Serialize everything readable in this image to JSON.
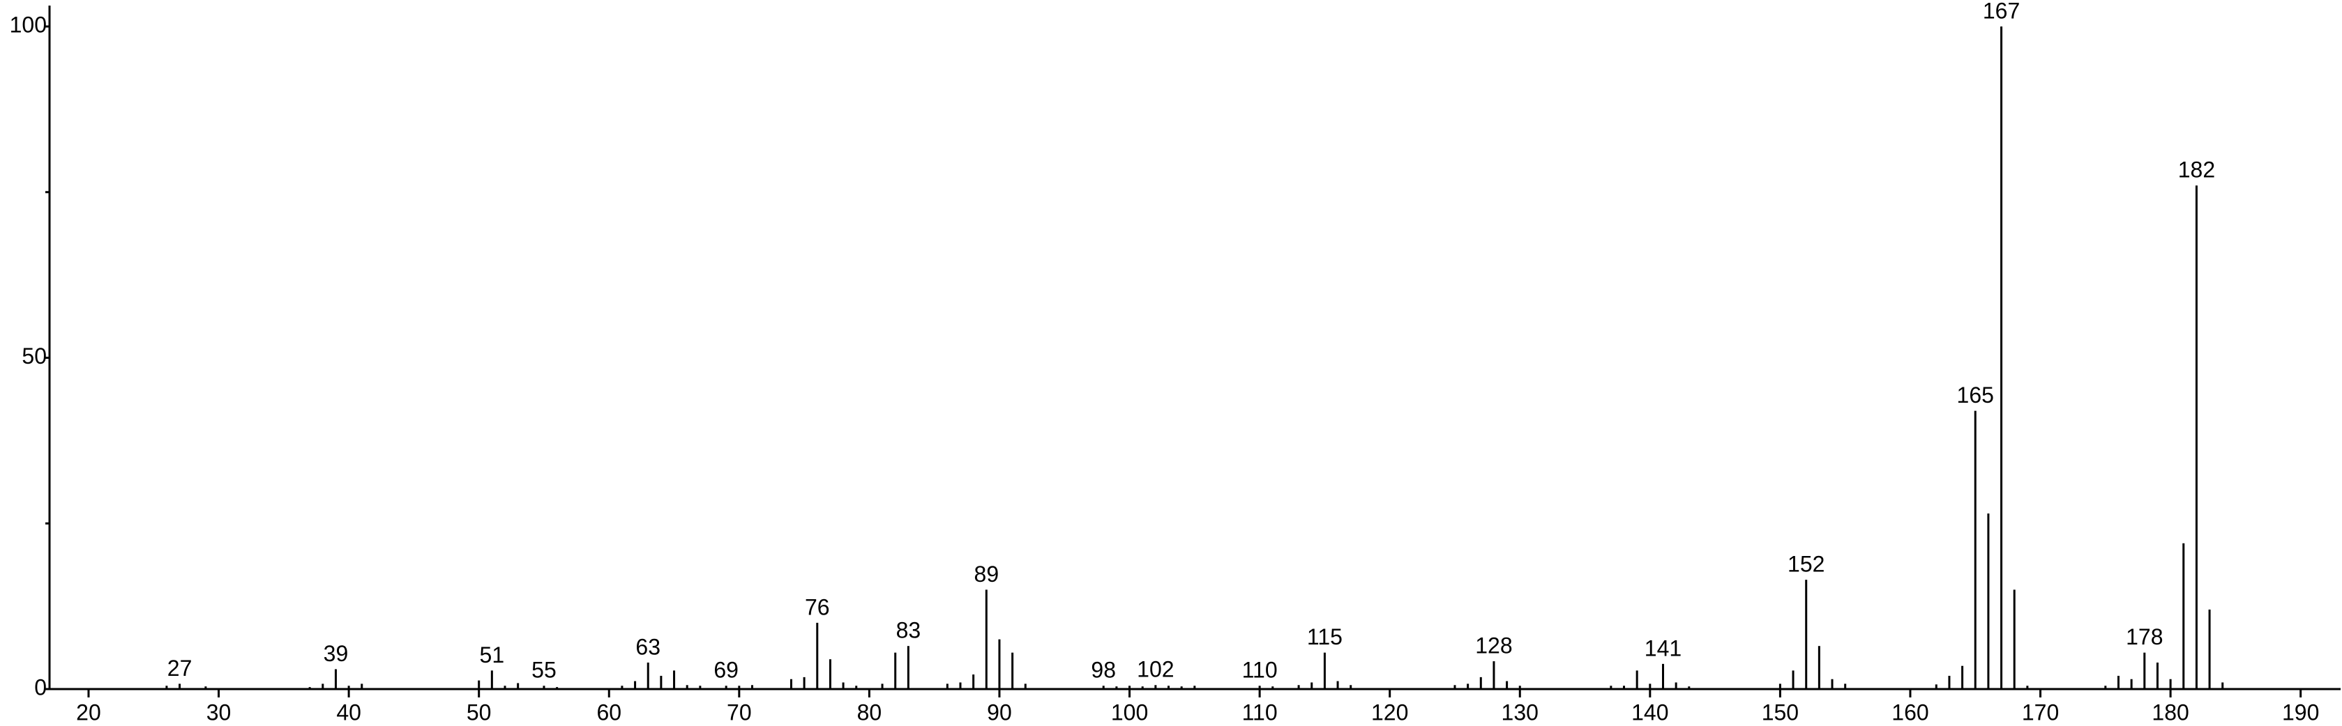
{
  "chart_data": {
    "type": "stem",
    "color": "#000000",
    "x": [
      26,
      27,
      29,
      37,
      38,
      39,
      40,
      41,
      50,
      51,
      52,
      53,
      55,
      56,
      61,
      62,
      63,
      64,
      65,
      66,
      67,
      69,
      70,
      71,
      74,
      75,
      76,
      77,
      78,
      79,
      81,
      82,
      83,
      86,
      87,
      88,
      89,
      90,
      91,
      92,
      98,
      99,
      100,
      101,
      102,
      103,
      104,
      105,
      110,
      111,
      113,
      114,
      115,
      116,
      117,
      125,
      126,
      127,
      128,
      129,
      130,
      137,
      138,
      139,
      140,
      141,
      142,
      143,
      150,
      151,
      152,
      153,
      154,
      155,
      162,
      163,
      164,
      165,
      166,
      167,
      168,
      169,
      175,
      176,
      177,
      178,
      179,
      180,
      181,
      182,
      183,
      184
    ],
    "values": [
      0.5,
      0.8,
      0.4,
      0.3,
      0.8,
      3.0,
      0.5,
      0.8,
      1.3,
      2.8,
      0.5,
      0.9,
      0.5,
      0.3,
      0.5,
      1.2,
      4.0,
      2.0,
      2.8,
      0.6,
      0.5,
      0.5,
      0.5,
      0.6,
      1.5,
      1.8,
      10,
      4.5,
      1.0,
      0.5,
      0.8,
      5.5,
      6.5,
      0.8,
      1.0,
      2.2,
      15,
      7.5,
      5.5,
      0.8,
      0.5,
      0.4,
      0.5,
      0.4,
      0.6,
      0.5,
      0.4,
      0.5,
      0.5,
      0.4,
      0.6,
      1.0,
      5.5,
      1.2,
      0.6,
      0.6,
      0.8,
      1.8,
      4.2,
      1.2,
      0.5,
      0.5,
      0.5,
      2.8,
      0.8,
      3.8,
      1.0,
      0.4,
      0.8,
      2.8,
      16.5,
      6.5,
      1.5,
      0.8,
      0.7,
      2.0,
      3.5,
      42,
      26.5,
      100,
      15,
      0.5,
      0.5,
      2.0,
      1.5,
      5.5,
      4.0,
      1.5,
      22,
      76,
      12,
      1.0
    ],
    "peak_labels": [
      27,
      39,
      51,
      55,
      63,
      69,
      76,
      83,
      89,
      98,
      102,
      110,
      115,
      128,
      141,
      152,
      165,
      167,
      178,
      182
    ],
    "xlim": [
      17,
      192
    ],
    "xticks": [
      20,
      30,
      40,
      50,
      60,
      70,
      80,
      90,
      100,
      110,
      120,
      130,
      140,
      150,
      160,
      170,
      180,
      190
    ],
    "ylim": [
      0,
      100
    ],
    "yticks": [
      0,
      50,
      100
    ],
    "yminor_ticks": [
      25,
      75
    ]
  }
}
